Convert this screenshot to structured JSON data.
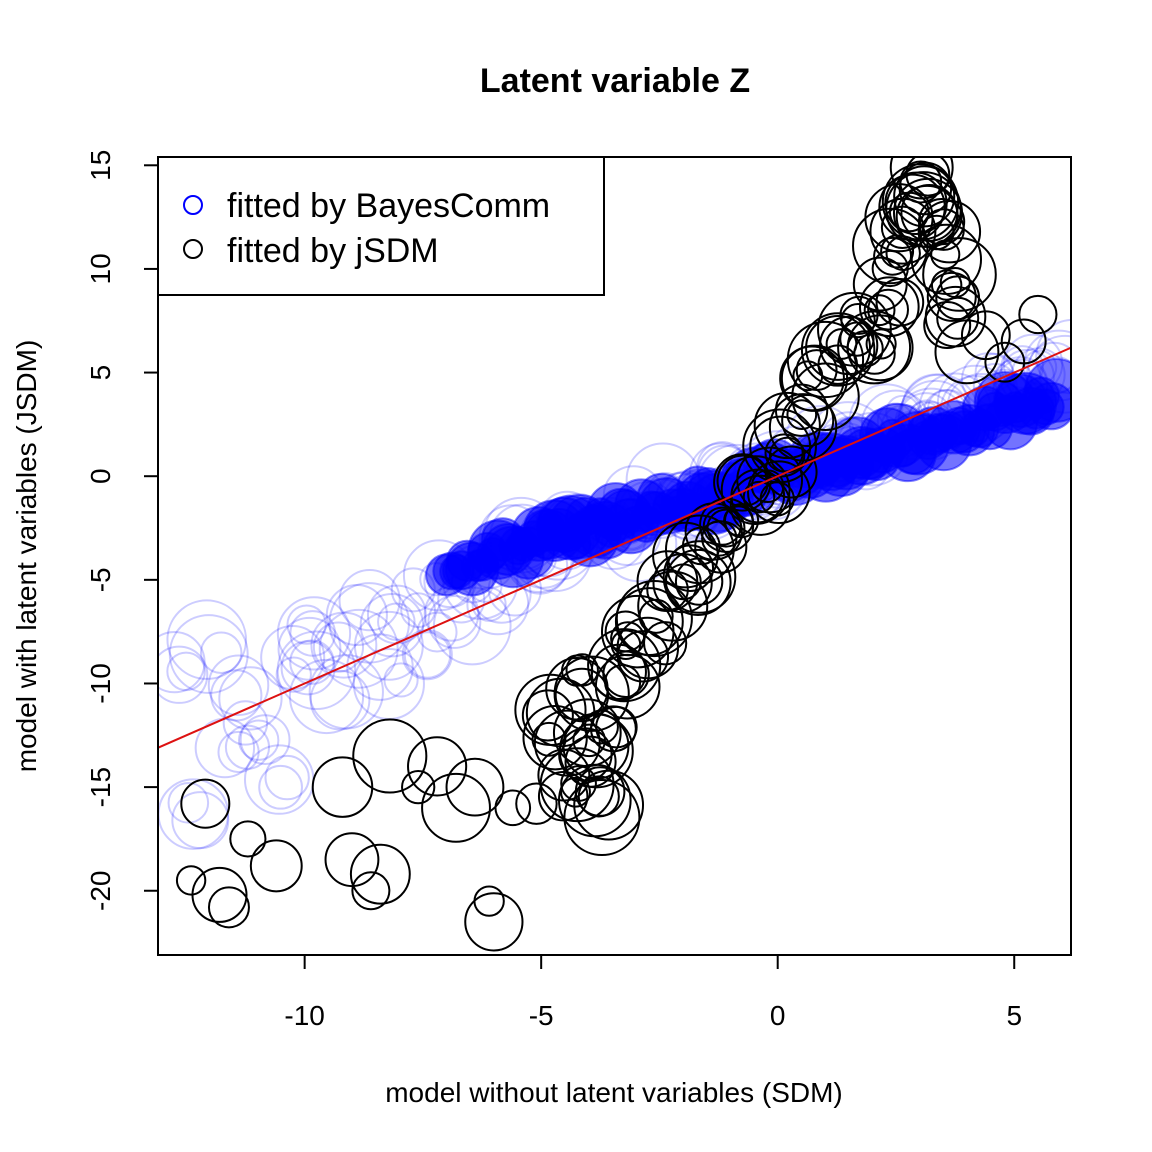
{
  "chart_data": {
    "type": "scatter",
    "title": "Latent variable Z",
    "xlabel": "model without latent variables (SDM)",
    "ylabel": "model with latent variables (JSDM)",
    "xlim": [
      -13.1,
      6.2
    ],
    "ylim": [
      -23.1,
      15.4
    ],
    "xticks": [
      -10,
      -5,
      0,
      5
    ],
    "xtick_labels": [
      "-10",
      "-5",
      "0",
      "5"
    ],
    "yticks": [
      -20,
      -15,
      -10,
      -5,
      0,
      5,
      10,
      15
    ],
    "ytick_labels": [
      "-20",
      "-15",
      "-10",
      "-5",
      "0",
      "5",
      "10",
      "15"
    ],
    "grid": false,
    "legend": {
      "position": "top-left",
      "entries": [
        "fitted by BayesComm",
        "fitted by jSDM"
      ]
    },
    "reference_line": {
      "type": "identity",
      "slope": 1,
      "intercept": 0,
      "color": "#dd1111"
    },
    "colors": {
      "BayesComm": "#0000ff",
      "jSDM": "#000000",
      "reference_line": "#dd1111"
    },
    "series": [
      {
        "name": "fitted by BayesComm",
        "marker": "open-circle",
        "color": "#0000ff",
        "opacity": 0.2,
        "x": [
          -12.5,
          -12.3,
          -11.8,
          -11.5,
          -11.0,
          -10.6,
          -10.2,
          -9.8,
          -9.4,
          -9.0,
          -8.6,
          -8.2,
          -7.8,
          -7.4,
          -7.0,
          -6.6,
          -6.2,
          -5.8,
          -5.4,
          -5.0,
          -4.6,
          -4.2,
          -3.8,
          -3.4,
          -3.0,
          -2.6,
          -2.2,
          -1.8,
          -1.4,
          -1.0,
          -0.6,
          -0.2,
          0.2,
          0.6,
          1.0,
          1.4,
          1.8,
          2.2,
          2.6,
          3.0,
          3.4,
          3.8,
          4.2,
          4.6,
          5.0,
          5.4,
          5.8,
          6.0,
          -11.2,
          -9.6,
          -8.0,
          -6.4,
          -4.8,
          -3.2,
          -1.6,
          0.0,
          1.6,
          3.2,
          4.8
        ],
        "y": [
          -9.5,
          -16.0,
          -8.5,
          -13.0,
          -12.5,
          -14.5,
          -9.0,
          -7.5,
          -11.0,
          -8.0,
          -6.5,
          -9.5,
          -6.0,
          -8.0,
          -4.5,
          -7.0,
          -4.5,
          -5.5,
          -3.5,
          -4.0,
          -2.5,
          -3.0,
          -2.0,
          -2.5,
          -1.5,
          -1.5,
          -0.5,
          -1.0,
          -0.2,
          -0.5,
          0.0,
          0.0,
          0.5,
          0.8,
          1.0,
          1.5,
          1.8,
          2.0,
          2.5,
          2.5,
          3.0,
          3.5,
          3.5,
          4.5,
          5.0,
          5.5,
          4.5,
          5.5,
          -10.5,
          -9.0,
          -7.5,
          -5.5,
          -4.0,
          -3.0,
          -1.5,
          0.0,
          1.2,
          2.8,
          4.0
        ]
      },
      {
        "name": "fitted by jSDM",
        "marker": "open-circle",
        "color": "#000000",
        "opacity": 1,
        "x": [
          -12.4,
          -12.1,
          -11.8,
          -11.6,
          -11.2,
          -10.6,
          -9.2,
          -9.0,
          -8.6,
          -8.4,
          -8.2,
          -7.6,
          -7.2,
          -6.8,
          -6.4,
          -6.1,
          -6.0,
          -5.6,
          -5.1,
          -4.8,
          -4.4,
          -4.2,
          -4.0,
          -3.8,
          -3.6,
          -3.4,
          -3.0,
          -2.6,
          -2.2,
          -1.8,
          -1.4,
          -1.0,
          -0.6,
          -0.2,
          0.2,
          0.4,
          0.8,
          1.2,
          1.6,
          2.0,
          2.4,
          2.6,
          2.8,
          3.0,
          3.2,
          3.4,
          3.6,
          3.8,
          4.0,
          4.4,
          4.8,
          5.2,
          5.5
        ],
        "y": [
          -19.5,
          -15.8,
          -20.2,
          -20.8,
          -17.5,
          -18.8,
          -15.0,
          -18.5,
          -20.0,
          -19.2,
          -13.5,
          -15.0,
          -14.0,
          -16.0,
          -15.0,
          -20.5,
          -21.5,
          -16.0,
          -15.8,
          -12.0,
          -15.0,
          -13.0,
          -10.0,
          -16.0,
          -12.5,
          -9.5,
          -8.0,
          -7.5,
          -5.5,
          -4.5,
          -3.0,
          -1.8,
          -1.0,
          -0.5,
          1.0,
          2.5,
          4.5,
          6.0,
          7.0,
          6.5,
          8.5,
          10.5,
          12.5,
          13.5,
          14.2,
          12.0,
          10.0,
          8.0,
          6.0,
          6.8,
          5.5,
          6.5,
          7.8
        ]
      }
    ]
  }
}
